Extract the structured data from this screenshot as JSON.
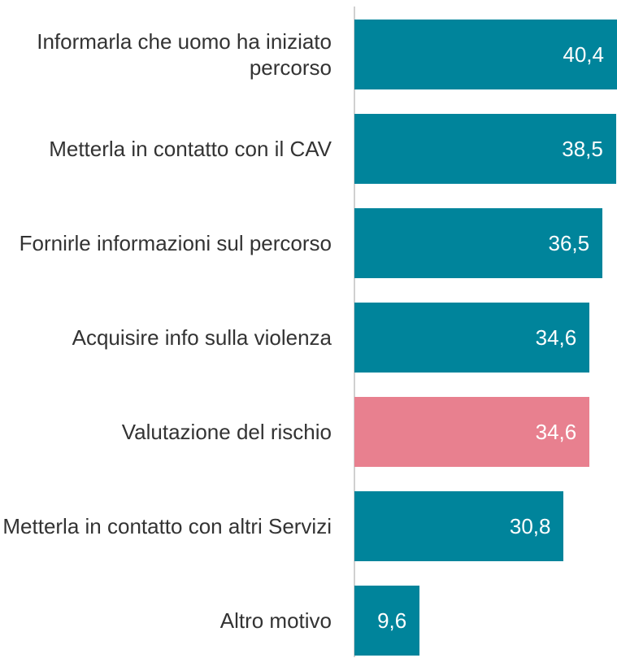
{
  "chart_data": {
    "type": "bar",
    "orientation": "horizontal",
    "categories": [
      "Informarla che uomo ha iniziato percorso",
      "Metterla in contatto con il CAV",
      "Fornirle informazioni sul percorso",
      "Acquisire info sulla violenza",
      "Valutazione del rischio",
      "Metterla in contatto con altri Servizi",
      "Altro motivo"
    ],
    "values": [
      40.4,
      38.5,
      36.5,
      34.6,
      34.6,
      30.8,
      9.6
    ],
    "value_labels": [
      "40,4",
      "38,5",
      "36,5",
      "34,6",
      "34,6",
      "30,8",
      "9,6"
    ],
    "colors": [
      "#00849b",
      "#00849b",
      "#00849b",
      "#00849b",
      "#e8808f",
      "#00849b",
      "#00849b"
    ]
  }
}
